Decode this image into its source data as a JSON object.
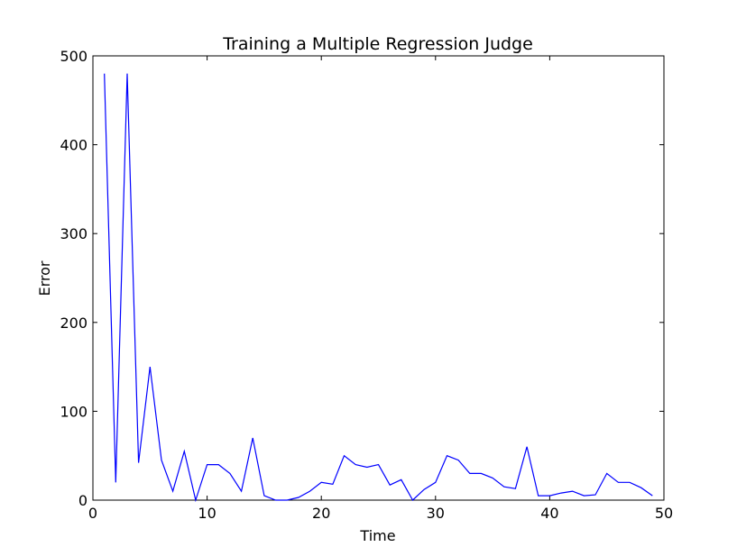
{
  "chart_data": {
    "type": "line",
    "title": "Training a Multiple Regression Judge",
    "xlabel": "Time",
    "ylabel": "Error",
    "xlim": [
      0,
      50
    ],
    "ylim": [
      0,
      500
    ],
    "xticks": [
      0,
      10,
      20,
      30,
      40,
      50
    ],
    "yticks": [
      0,
      100,
      200,
      300,
      400,
      500
    ],
    "grid": false,
    "series": [
      {
        "color": "#0000ff",
        "x": [
          1,
          2,
          3,
          4,
          5,
          6,
          7,
          8,
          9,
          10,
          11,
          12,
          13,
          14,
          15,
          16,
          17,
          18,
          19,
          20,
          21,
          22,
          23,
          24,
          25,
          26,
          27,
          28,
          29,
          30,
          31,
          32,
          33,
          34,
          35,
          36,
          37,
          38,
          39,
          40,
          41,
          42,
          43,
          44,
          45,
          46,
          47,
          48,
          49
        ],
        "y": [
          480,
          20,
          480,
          42,
          150,
          45,
          10,
          55,
          0,
          40,
          40,
          30,
          10,
          70,
          5,
          0,
          0,
          3,
          10,
          20,
          18,
          50,
          40,
          37,
          40,
          17,
          23,
          0,
          12,
          20,
          50,
          45,
          30,
          30,
          25,
          15,
          13,
          60,
          5,
          5,
          8,
          10,
          5,
          6,
          30,
          20,
          20,
          14,
          5
        ]
      }
    ]
  }
}
